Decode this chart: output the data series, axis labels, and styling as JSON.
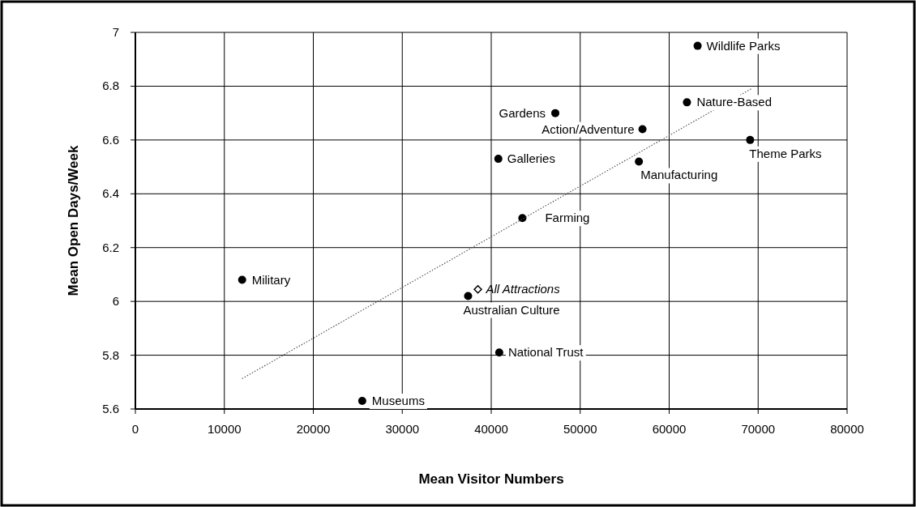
{
  "chart_data": {
    "type": "scatter",
    "xlabel": "Mean Visitor Numbers",
    "ylabel": "Mean Open Days/Week",
    "xlim": [
      0,
      80000
    ],
    "xticks": [
      0,
      10000,
      20000,
      30000,
      40000,
      50000,
      60000,
      70000,
      80000
    ],
    "ylim": [
      5.6,
      7
    ],
    "yticks": [
      5.6,
      5.8,
      6,
      6.2,
      6.4,
      6.6,
      6.8,
      7
    ],
    "grid": true,
    "marker": "circle",
    "series": [
      {
        "color": "#000000",
        "x": [
          12000,
          25500,
          37400,
          47200,
          57000,
          40800,
          56600,
          43500,
          40900,
          63200,
          62000,
          69100
        ],
        "values": [
          6.08,
          5.63,
          6.02,
          6.7,
          6.64,
          6.53,
          6.52,
          6.31,
          5.81,
          6.95,
          6.74,
          6.6
        ]
      },
      {
        "name": "All Attractions",
        "color": "#000000",
        "marker": "diamond",
        "x": [
          38500
        ],
        "values": [
          6.045
        ]
      },
      {
        "type": "line",
        "color": "#555555",
        "line_style": "dotted",
        "marker": "none",
        "x": [
          12000,
          69200
        ],
        "values": [
          5.713,
          6.79
        ]
      }
    ],
    "annotations": [
      {
        "text": "Military",
        "x": 12000,
        "y": 6.08
      },
      {
        "text": "Museums",
        "x": 25500,
        "y": 5.63
      },
      {
        "text": "Australian Culture",
        "x": 37400,
        "y": 6.02
      },
      {
        "text": "Gardens",
        "x": 47200,
        "y": 6.7
      },
      {
        "text": "Action/Adventure",
        "x": 57000,
        "y": 6.64
      },
      {
        "text": "Galleries",
        "x": 40800,
        "y": 6.53
      },
      {
        "text": "Manufacturing",
        "x": 56600,
        "y": 6.52
      },
      {
        "text": "Farming",
        "x": 43500,
        "y": 6.31
      },
      {
        "text": "National Trust",
        "x": 40900,
        "y": 5.81
      },
      {
        "text": "Wildlife Parks",
        "x": 63200,
        "y": 6.95
      },
      {
        "text": "Nature-Based",
        "x": 62000,
        "y": 6.74
      },
      {
        "text": "Theme Parks",
        "x": 69100,
        "y": 6.6
      }
    ]
  }
}
